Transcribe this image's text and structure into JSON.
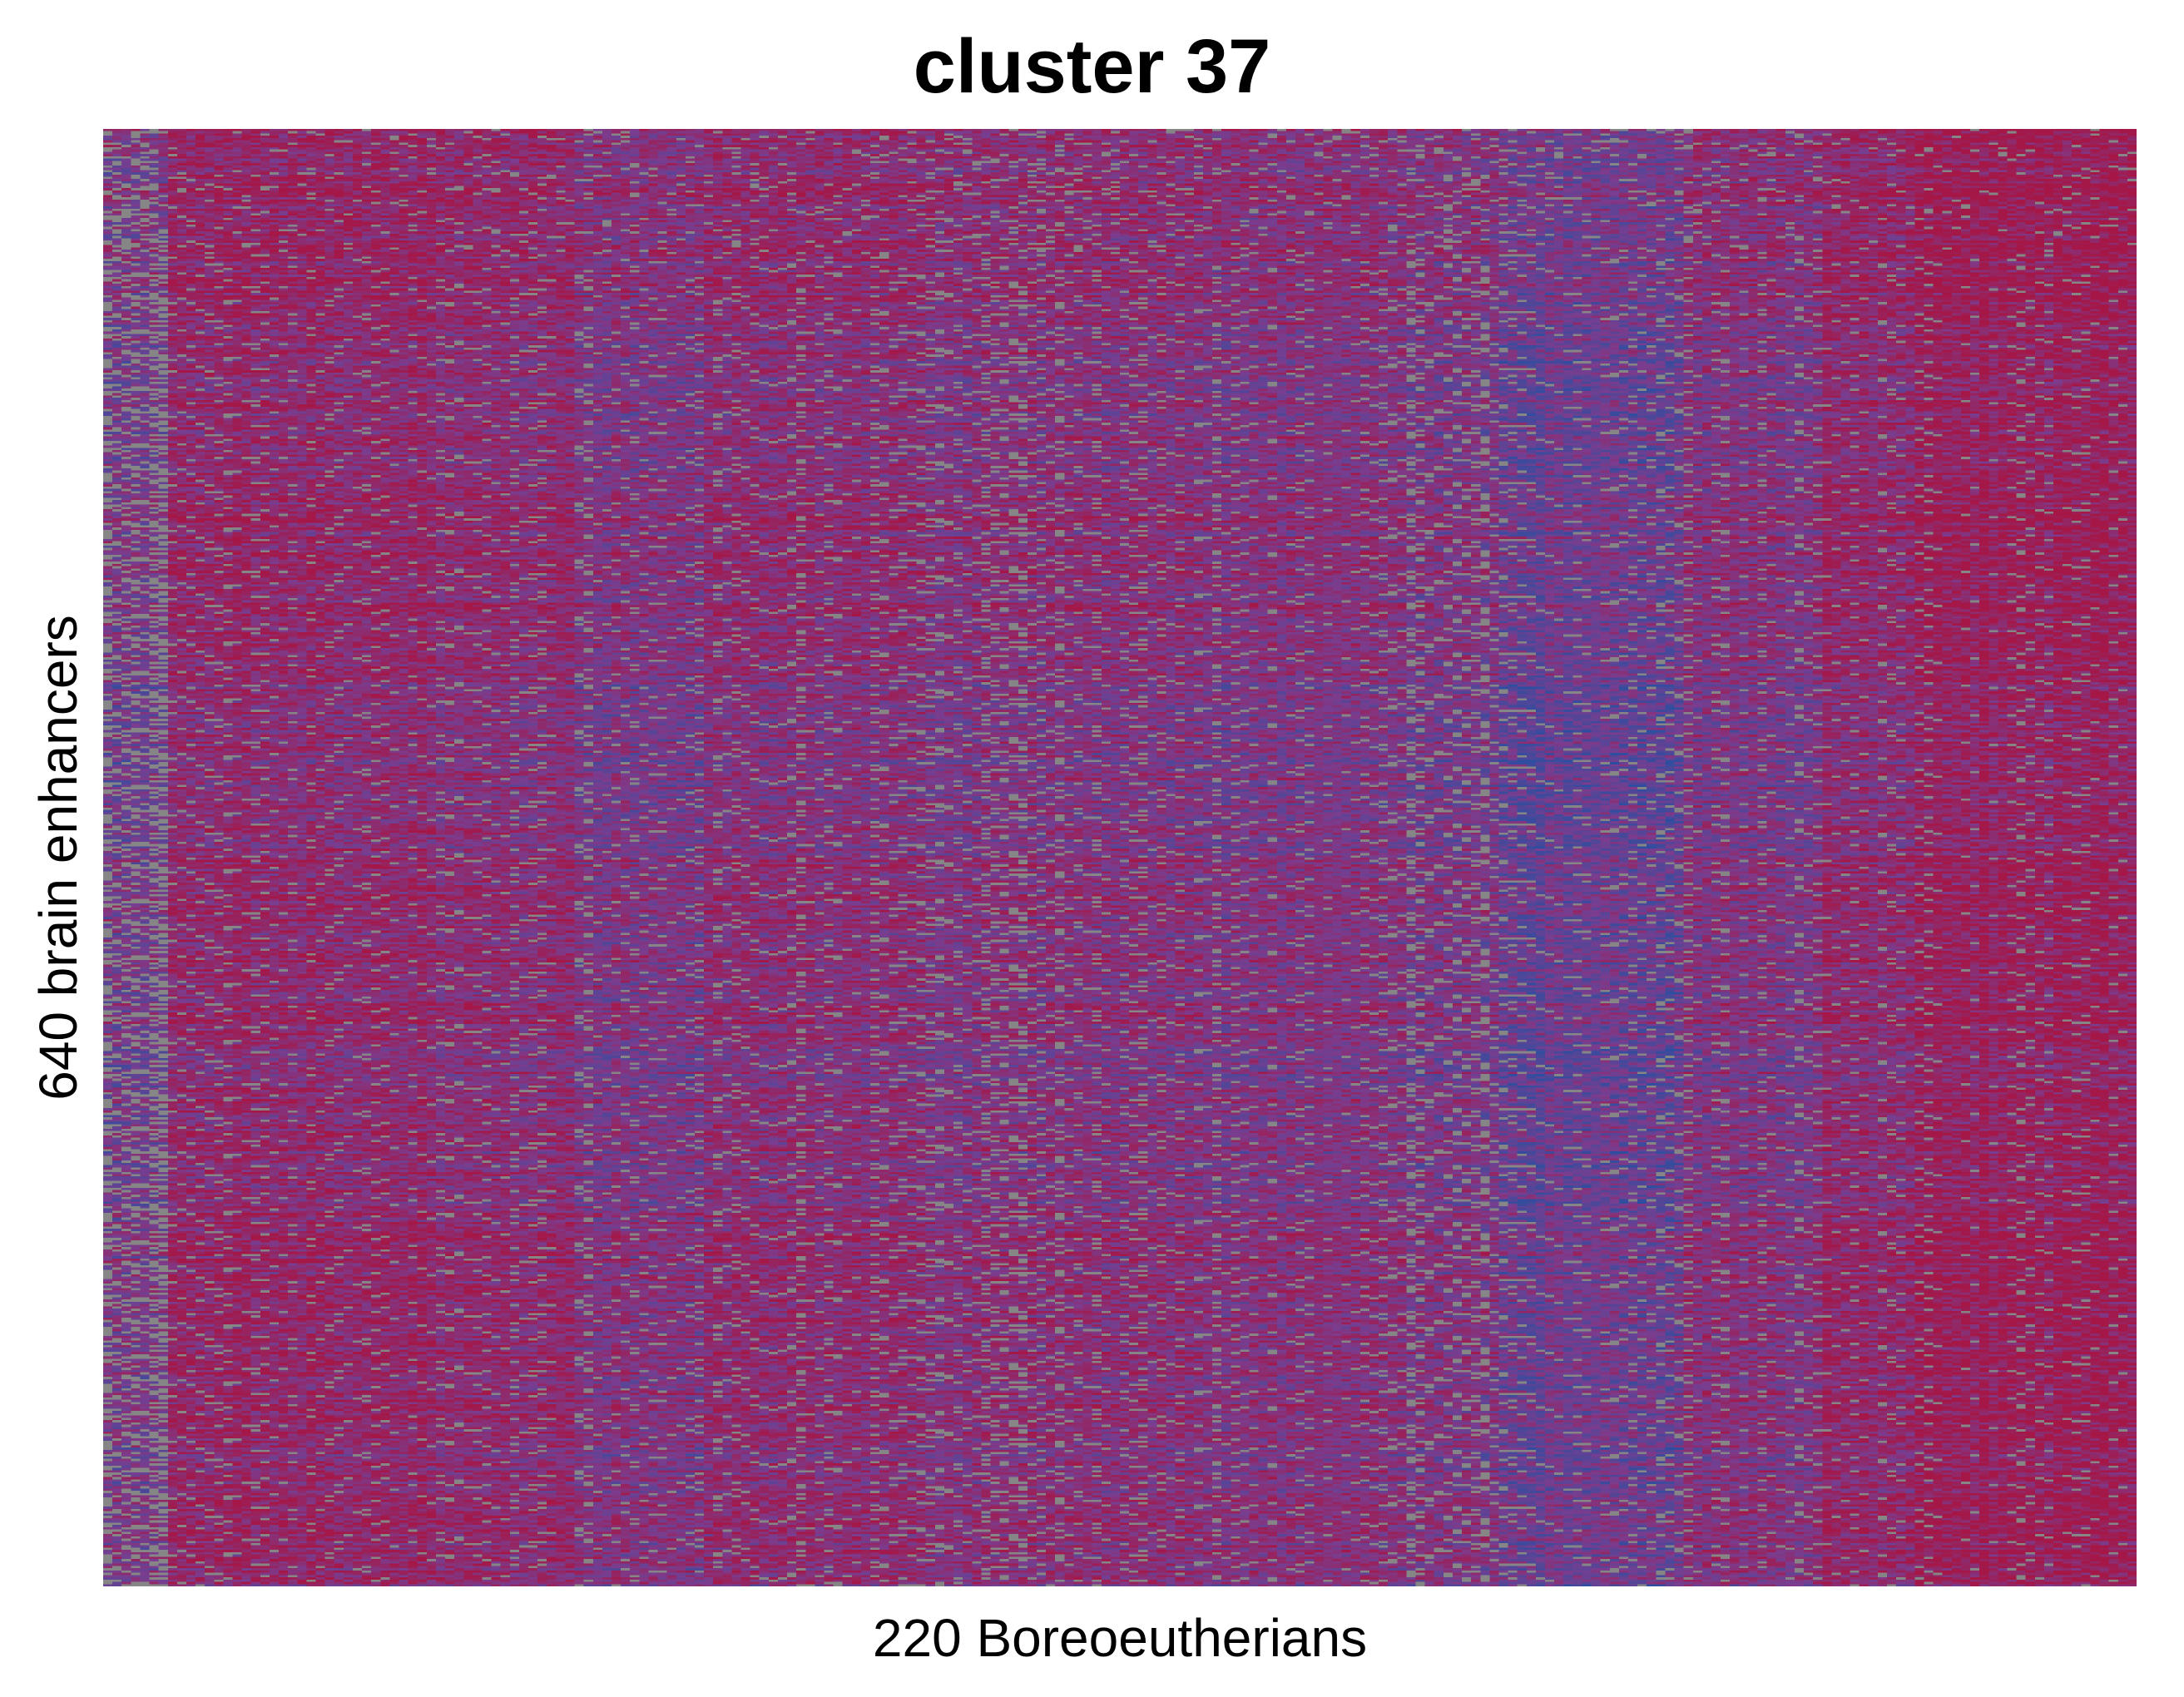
{
  "chart_data": {
    "type": "heatmap",
    "title": "cluster 37",
    "xlabel": "220 Boreoeutherians",
    "ylabel": "640 brain enhancers",
    "n_cols": 220,
    "n_rows": 640,
    "legend": "none",
    "grid": false,
    "colors": {
      "high": "#a51747",
      "mid": "#7a3d8f",
      "low": "#2c4ea0",
      "missing": "#868686"
    },
    "column_blocks": [
      {
        "from": 0,
        "to": 7,
        "level": 0.5,
        "missing": 0.3
      },
      {
        "from": 7,
        "to": 37,
        "level": 0.74,
        "missing": 0.06
      },
      {
        "from": 37,
        "to": 51,
        "level": 0.7,
        "missing": 0.07
      },
      {
        "from": 51,
        "to": 65,
        "level": 0.58,
        "missing": 0.08
      },
      {
        "from": 65,
        "to": 89,
        "level": 0.66,
        "missing": 0.09
      },
      {
        "from": 89,
        "to": 119,
        "level": 0.63,
        "missing": 0.13
      },
      {
        "from": 119,
        "to": 139,
        "level": 0.61,
        "missing": 0.1
      },
      {
        "from": 139,
        "to": 151,
        "level": 0.55,
        "missing": 0.15
      },
      {
        "from": 151,
        "to": 171,
        "level": 0.42,
        "missing": 0.1
      },
      {
        "from": 171,
        "to": 186,
        "level": 0.6,
        "missing": 0.09
      },
      {
        "from": 186,
        "to": 196,
        "level": 0.72,
        "missing": 0.05
      },
      {
        "from": 196,
        "to": 220,
        "level": 0.86,
        "missing": 0.04
      }
    ],
    "row_blocks": [
      {
        "from": 0,
        "to": 80,
        "shift": 0.06
      },
      {
        "from": 80,
        "to": 160,
        "shift": -0.03
      },
      {
        "from": 160,
        "to": 240,
        "shift": 0.05
      },
      {
        "from": 240,
        "to": 320,
        "shift": -0.06
      },
      {
        "from": 320,
        "to": 400,
        "shift": 0.02
      },
      {
        "from": 400,
        "to": 480,
        "shift": -0.02
      },
      {
        "from": 480,
        "to": 560,
        "shift": 0.04
      },
      {
        "from": 560,
        "to": 640,
        "shift": 0.0
      }
    ]
  }
}
